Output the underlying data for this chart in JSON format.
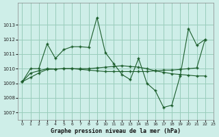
{
  "title": "Graphe pression niveau de la mer (hPa)",
  "background_color": "#ceeee8",
  "grid_color": "#99ccbb",
  "line_color": "#1a5c2a",
  "xlim": [
    -0.5,
    23
  ],
  "ylim": [
    1006.5,
    1014.5
  ],
  "yticks": [
    1007,
    1008,
    1009,
    1010,
    1011,
    1012,
    1013
  ],
  "xticks": [
    0,
    1,
    2,
    3,
    4,
    5,
    6,
    7,
    8,
    9,
    10,
    11,
    12,
    13,
    14,
    15,
    16,
    17,
    18,
    19,
    20,
    21,
    22,
    23
  ],
  "series": [
    {
      "x": [
        0,
        1,
        2,
        3,
        4,
        5,
        6,
        7,
        8,
        9,
        10,
        11,
        12,
        13,
        14,
        15,
        16,
        17,
        18,
        19,
        20,
        21,
        22
      ],
      "y": [
        1009.1,
        1010.0,
        1010.0,
        1011.7,
        1010.7,
        1011.3,
        1011.5,
        1011.5,
        1011.45,
        1013.5,
        1011.1,
        1010.35,
        1009.6,
        1009.25,
        1010.7,
        1009.0,
        1008.5,
        1007.35,
        1007.5,
        1009.5,
        1012.75,
        1011.6,
        1012.0
      ]
    },
    {
      "x": [
        0,
        1,
        2,
        3,
        4,
        5,
        6,
        7,
        8,
        9,
        10,
        11,
        12,
        13,
        14,
        15,
        16,
        17,
        18,
        19,
        20,
        21,
        22
      ],
      "y": [
        1009.1,
        1009.7,
        1009.85,
        1010.0,
        1009.98,
        1010.0,
        1010.0,
        1010.0,
        1010.0,
        1010.05,
        1010.1,
        1010.15,
        1010.2,
        1010.15,
        1010.1,
        1010.0,
        1009.85,
        1009.75,
        1009.65,
        1009.6,
        1009.55,
        1009.5,
        1009.5
      ]
    },
    {
      "x": [
        0,
        1,
        2,
        3,
        4,
        5,
        6,
        7,
        8,
        9,
        10,
        11,
        12,
        13,
        14,
        15,
        16,
        17,
        18,
        19,
        20,
        21,
        22
      ],
      "y": [
        1009.1,
        1009.4,
        1009.7,
        1009.95,
        1009.97,
        1010.0,
        1010.0,
        1009.95,
        1009.9,
        1009.85,
        1009.8,
        1009.8,
        1009.8,
        1009.8,
        1009.8,
        1009.8,
        1009.85,
        1009.9,
        1009.9,
        1009.95,
        1010.0,
        1010.05,
        1012.0
      ]
    }
  ]
}
